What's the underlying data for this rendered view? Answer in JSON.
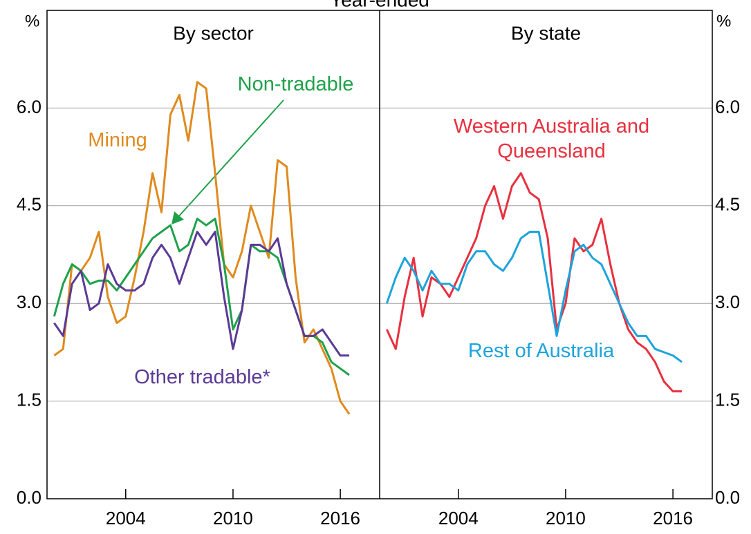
{
  "title": "Year-ended",
  "chart_data": [
    {
      "type": "line",
      "subtitle": "By sector",
      "ylabel": "%",
      "x": [
        2000,
        2000.5,
        2001,
        2001.5,
        2002,
        2002.5,
        2003,
        2003.5,
        2004,
        2004.5,
        2005,
        2005.5,
        2006,
        2006.5,
        2007,
        2007.5,
        2008,
        2008.5,
        2009,
        2009.5,
        2010,
        2010.5,
        2011,
        2011.5,
        2012,
        2012.5,
        2013,
        2013.5,
        2014,
        2014.5,
        2015,
        2015.5,
        2016,
        2016.5
      ],
      "xlim": [
        1999.6,
        2018.2
      ],
      "xticks": [
        2004,
        2010,
        2016
      ],
      "ylim": [
        0,
        7.5
      ],
      "yticks": [
        {
          "value": 0,
          "label": "0.0"
        },
        {
          "value": 1.5,
          "label": "1.5"
        },
        {
          "value": 3,
          "label": "3.0"
        },
        {
          "value": 4.5,
          "label": "4.5"
        },
        {
          "value": 6,
          "label": "6.0"
        }
      ],
      "grid": true,
      "series": [
        {
          "name": "Mining",
          "color": "#e08a1e",
          "values": [
            2.2,
            2.3,
            3.6,
            3.5,
            3.7,
            4.1,
            3.1,
            2.7,
            2.8,
            3.4,
            4.1,
            5.0,
            4.4,
            5.9,
            6.2,
            5.5,
            6.4,
            6.3,
            5.0,
            3.6,
            3.4,
            3.8,
            4.5,
            4.1,
            3.7,
            5.2,
            5.1,
            3.4,
            2.4,
            2.6,
            2.3,
            2.0,
            1.5,
            1.3
          ]
        },
        {
          "name": "Non-tradable",
          "color": "#1fa14a",
          "values": [
            2.8,
            3.3,
            3.6,
            3.5,
            3.3,
            3.35,
            3.35,
            3.2,
            3.4,
            3.6,
            3.8,
            4.0,
            4.1,
            4.2,
            3.8,
            3.9,
            4.3,
            4.2,
            4.3,
            3.6,
            2.6,
            2.9,
            3.9,
            3.8,
            3.8,
            3.7,
            3.3,
            2.9,
            2.5,
            2.5,
            2.4,
            2.1,
            2.0,
            1.9
          ]
        },
        {
          "name": "Other tradable*",
          "color": "#5b3a96",
          "values": [
            2.7,
            2.5,
            3.3,
            3.5,
            2.9,
            3.0,
            3.6,
            3.3,
            3.2,
            3.2,
            3.3,
            3.7,
            3.9,
            3.7,
            3.3,
            3.7,
            4.1,
            3.9,
            4.1,
            3.1,
            2.3,
            2.9,
            3.9,
            3.9,
            3.8,
            4.0,
            3.3,
            2.9,
            2.5,
            2.5,
            2.6,
            2.4,
            2.2,
            2.2
          ]
        }
      ]
    },
    {
      "type": "line",
      "subtitle": "By state",
      "ylabel": "%",
      "x": [
        2000,
        2000.5,
        2001,
        2001.5,
        2002,
        2002.5,
        2003,
        2003.5,
        2004,
        2004.5,
        2005,
        2005.5,
        2006,
        2006.5,
        2007,
        2007.5,
        2008,
        2008.5,
        2009,
        2009.5,
        2010,
        2010.5,
        2011,
        2011.5,
        2012,
        2012.5,
        2013,
        2013.5,
        2014,
        2014.5,
        2015,
        2015.5,
        2016,
        2016.5
      ],
      "xlim": [
        1999.6,
        2018.2
      ],
      "xticks": [
        2004,
        2010,
        2016
      ],
      "ylim": [
        0,
        7.5
      ],
      "yticks": [
        {
          "value": 0,
          "label": "0.0"
        },
        {
          "value": 1.5,
          "label": "1.5"
        },
        {
          "value": 3,
          "label": "3.0"
        },
        {
          "value": 4.5,
          "label": "4.5"
        },
        {
          "value": 6,
          "label": "6.0"
        }
      ],
      "grid": true,
      "series": [
        {
          "name": "Western Australia and Queensland",
          "color": "#e8303f",
          "values": [
            2.6,
            2.3,
            3.1,
            3.7,
            2.8,
            3.4,
            3.3,
            3.1,
            3.4,
            3.7,
            4.0,
            4.5,
            4.8,
            4.3,
            4.8,
            5.0,
            4.7,
            4.6,
            4.0,
            2.6,
            3.0,
            4.0,
            3.8,
            3.9,
            4.3,
            3.6,
            3.0,
            2.6,
            2.4,
            2.3,
            2.1,
            1.8,
            1.65,
            1.65
          ]
        },
        {
          "name": "Rest of Australia",
          "color": "#1ca3dc",
          "values": [
            3.0,
            3.4,
            3.7,
            3.5,
            3.2,
            3.5,
            3.3,
            3.3,
            3.2,
            3.6,
            3.8,
            3.8,
            3.6,
            3.5,
            3.7,
            4.0,
            4.1,
            4.1,
            3.3,
            2.5,
            3.2,
            3.8,
            3.9,
            3.7,
            3.6,
            3.3,
            3.0,
            2.7,
            2.5,
            2.5,
            2.3,
            2.25,
            2.2,
            2.1
          ]
        }
      ]
    }
  ]
}
